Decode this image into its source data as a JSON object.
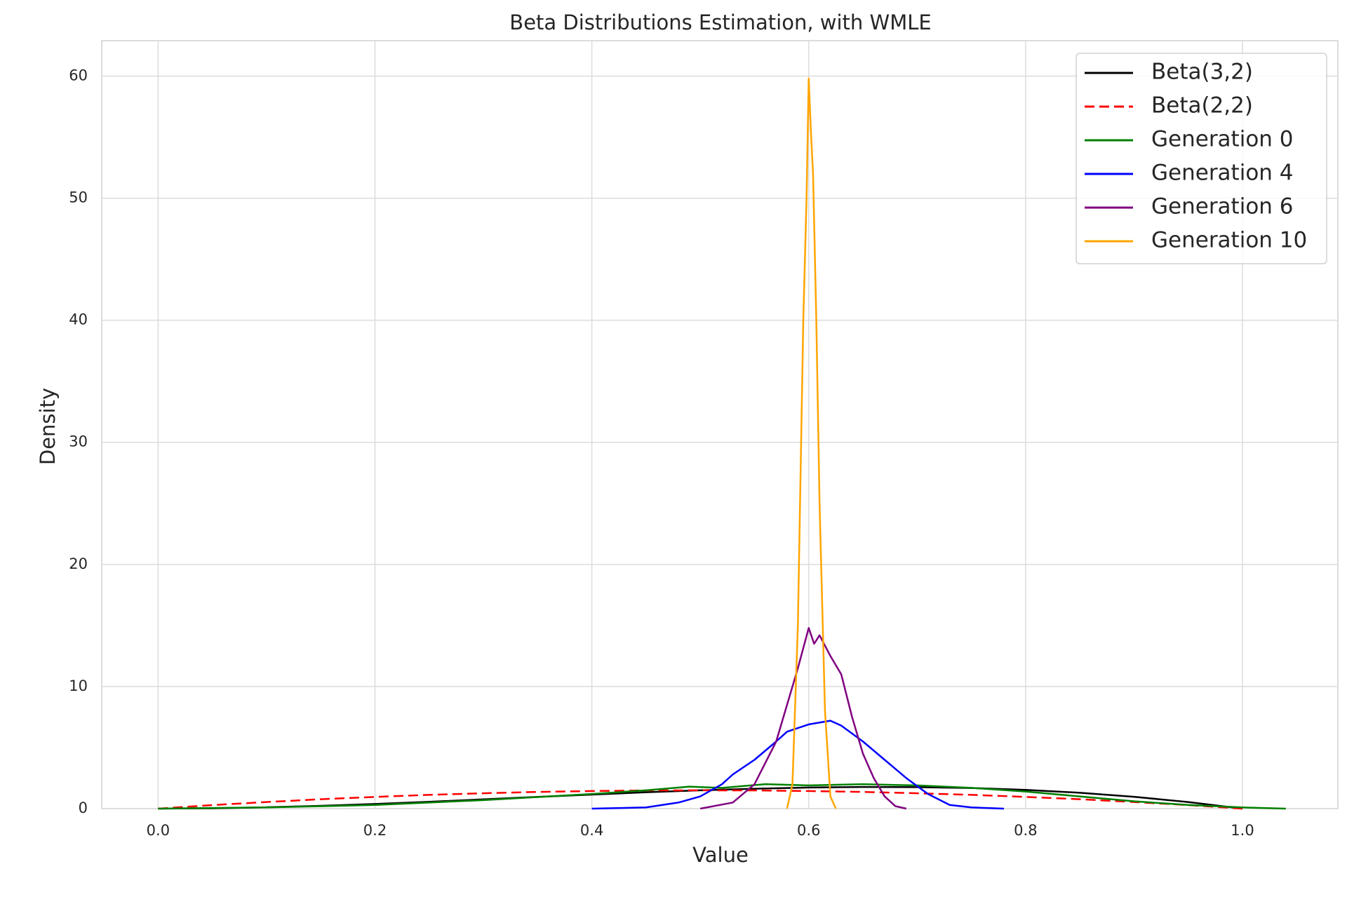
{
  "chart_data": {
    "type": "line",
    "title": "Beta Distributions Estimation, with WMLE",
    "xlabel": "Value",
    "ylabel": "Density",
    "xlim": [
      -0.052,
      1.088
    ],
    "ylim": [
      0,
      62.9
    ],
    "xticks": [
      {
        "value": 0,
        "label": "0.0"
      },
      0.2,
      0.4,
      0.6,
      0.8,
      {
        "value": 1,
        "label": "1.0"
      }
    ],
    "yticks": [
      0,
      10,
      20,
      30,
      40,
      50,
      60
    ],
    "grid": true,
    "legend": "upper right",
    "series": [
      {
        "name": "Beta(3,2)",
        "color": "#000000",
        "linestyle": "solid",
        "x": [
          0,
          0.05,
          0.1,
          0.15,
          0.2,
          0.25,
          0.3,
          0.35,
          0.4,
          0.45,
          0.5,
          0.55,
          0.6,
          0.65,
          0.7,
          0.75,
          0.8,
          0.85,
          0.9,
          0.95,
          1
        ],
        "values": [
          0,
          0.03,
          0.11,
          0.23,
          0.38,
          0.56,
          0.76,
          0.96,
          1.15,
          1.34,
          1.5,
          1.63,
          1.73,
          1.77,
          1.76,
          1.69,
          1.54,
          1.3,
          0.97,
          0.54,
          0
        ]
      },
      {
        "name": "Beta(2,2)",
        "color": "#ff0000",
        "linestyle": "dashed",
        "x": [
          0,
          0.05,
          0.1,
          0.15,
          0.2,
          0.25,
          0.3,
          0.35,
          0.4,
          0.45,
          0.5,
          0.55,
          0.6,
          0.65,
          0.7,
          0.75,
          0.8,
          0.85,
          0.9,
          0.95,
          1
        ],
        "values": [
          0,
          0.29,
          0.54,
          0.77,
          0.96,
          1.13,
          1.26,
          1.37,
          1.44,
          1.49,
          1.5,
          1.49,
          1.44,
          1.37,
          1.26,
          1.13,
          0.96,
          0.77,
          0.54,
          0.29,
          0
        ]
      },
      {
        "name": "Generation 0",
        "color": "#008000",
        "linestyle": "solid",
        "x": [
          0,
          0.1,
          0.2,
          0.3,
          0.4,
          0.45,
          0.49,
          0.52,
          0.56,
          0.6,
          0.65,
          0.7,
          0.75,
          0.8,
          0.85,
          0.9,
          0.95,
          1.0,
          1.04
        ],
        "values": [
          0,
          0.1,
          0.3,
          0.7,
          1.2,
          1.5,
          1.8,
          1.7,
          2.0,
          1.9,
          2.0,
          1.9,
          1.7,
          1.4,
          1.0,
          0.6,
          0.3,
          0.1,
          0
        ]
      },
      {
        "name": "Generation 4",
        "color": "#0000ff",
        "linestyle": "solid",
        "x": [
          0.4,
          0.45,
          0.48,
          0.5,
          0.52,
          0.53,
          0.55,
          0.57,
          0.58,
          0.6,
          0.62,
          0.63,
          0.65,
          0.67,
          0.69,
          0.71,
          0.73,
          0.75,
          0.78
        ],
        "values": [
          0,
          0.1,
          0.5,
          1.0,
          2.0,
          2.8,
          4.0,
          5.5,
          6.3,
          6.9,
          7.2,
          6.8,
          5.5,
          4.0,
          2.5,
          1.2,
          0.3,
          0.1,
          0
        ]
      },
      {
        "name": "Generation 6",
        "color": "#800080",
        "linestyle": "solid",
        "x": [
          0.5,
          0.53,
          0.55,
          0.57,
          0.58,
          0.59,
          0.6,
          0.605,
          0.61,
          0.62,
          0.63,
          0.64,
          0.65,
          0.66,
          0.67,
          0.68,
          0.69
        ],
        "values": [
          0,
          0.5,
          2.0,
          5.5,
          8.5,
          11.5,
          14.8,
          13.5,
          14.2,
          12.5,
          11,
          7.5,
          4.5,
          2.5,
          1.0,
          0.2,
          0
        ]
      },
      {
        "name": "Generation 10",
        "color": "#ffa500",
        "linestyle": "solid",
        "x": [
          0.58,
          0.585,
          0.59,
          0.595,
          0.598,
          0.6,
          0.602,
          0.604,
          0.607,
          0.61,
          0.615,
          0.62,
          0.625
        ],
        "values": [
          0,
          2,
          15,
          40,
          50,
          59.8,
          55.5,
          52,
          40,
          25,
          8,
          1,
          0
        ]
      }
    ]
  }
}
